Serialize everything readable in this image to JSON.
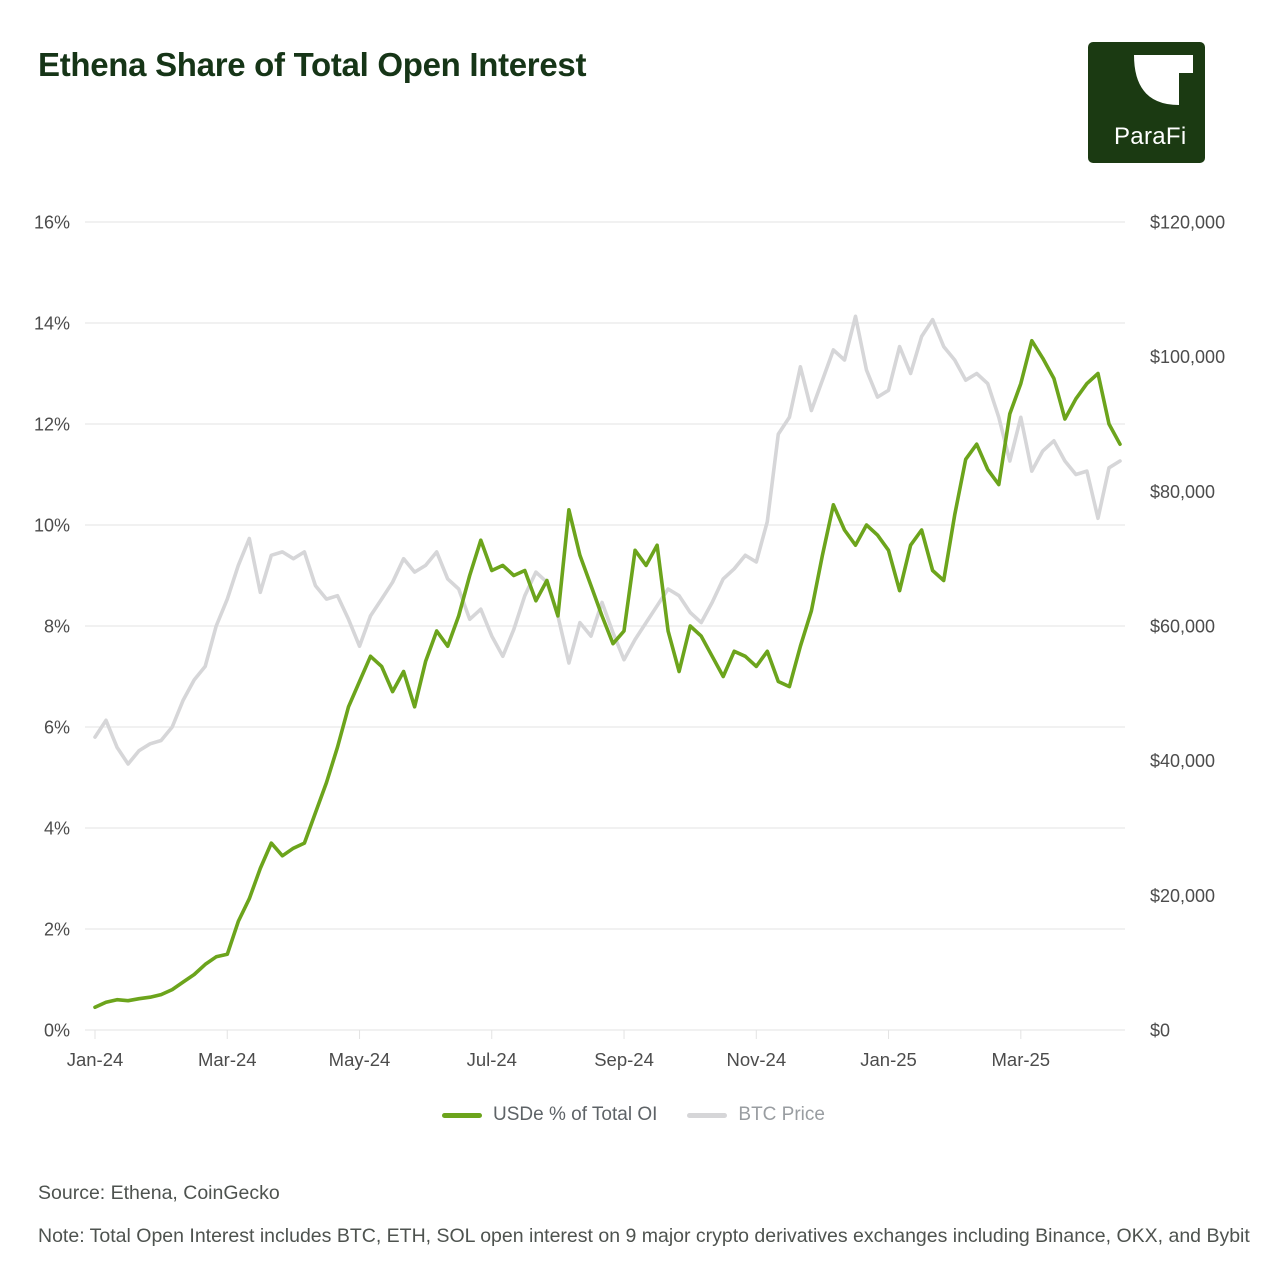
{
  "header": {
    "title": "Ethena Share of Total Open Interest",
    "logo_text": "ParaFi"
  },
  "colors": {
    "brand_green_dark": "#1B3A12",
    "line_green": "#6CA41C",
    "line_gray": "#D6D6D8",
    "grid": "#E3E3E3",
    "axis_text": "#4C4C4C",
    "legend_text_primary": "#5E6367",
    "legend_text_secondary": "#999DA1",
    "footer_text": "#4E534F"
  },
  "legend": [
    {
      "label": "USDe % of Total OI",
      "color": "#6CA41C"
    },
    {
      "label": "BTC Price",
      "color": "#D6D6D8"
    }
  ],
  "footer": {
    "source": "Source: Ethena, CoinGecko",
    "note": "Note: Total Open Interest includes BTC, ETH, SOL open interest on 9 major crypto derivatives exchanges including Binance, OKX, and Bybit"
  },
  "chart_data": {
    "type": "line",
    "title": "Ethena Share of Total Open Interest",
    "grid": "horizontal",
    "legend_position": "bottom",
    "x_tick_labels": [
      "Jan-24",
      "Mar-24",
      "May-24",
      "Jul-24",
      "Sep-24",
      "Nov-24",
      "Jan-25",
      "Mar-25"
    ],
    "x_tick_month_index": [
      0,
      2,
      4,
      6,
      8,
      10,
      12,
      14
    ],
    "points_per_month": 6,
    "left_axis": {
      "title": "USDe share of total open interest",
      "unit": "percent",
      "min": 0,
      "max": 16,
      "ticks": [
        "0%",
        "2%",
        "4%",
        "6%",
        "8%",
        "10%",
        "12%",
        "14%",
        "16%"
      ]
    },
    "right_axis": {
      "title": "BTC price",
      "unit": "USD",
      "min": 0,
      "max": 120000,
      "ticks": [
        "$0",
        "$20,000",
        "$40,000",
        "$60,000",
        "$80,000",
        "$100,000",
        "$120,000"
      ]
    },
    "series": [
      {
        "id": "usde_share",
        "name": "USDe % of Total OI",
        "axis": "left",
        "color": "#6CA41C",
        "values": [
          0.45,
          0.55,
          0.6,
          0.58,
          0.62,
          0.65,
          0.7,
          0.8,
          0.95,
          1.1,
          1.3,
          1.45,
          1.5,
          2.15,
          2.6,
          3.2,
          3.7,
          3.45,
          3.6,
          3.7,
          4.3,
          4.9,
          5.6,
          6.4,
          6.9,
          7.4,
          7.2,
          6.7,
          7.1,
          6.4,
          7.3,
          7.9,
          7.6,
          8.2,
          9.0,
          9.7,
          9.1,
          9.2,
          9.0,
          9.1,
          8.5,
          8.9,
          8.2,
          10.3,
          9.4,
          8.8,
          8.2,
          7.65,
          7.9,
          9.5,
          9.2,
          9.6,
          7.9,
          7.1,
          8.0,
          7.8,
          7.4,
          7.0,
          7.5,
          7.4,
          7.2,
          7.5,
          6.9,
          6.8,
          7.6,
          8.3,
          9.4,
          10.4,
          9.9,
          9.6,
          10.0,
          9.8,
          9.5,
          8.7,
          9.6,
          9.9,
          9.1,
          8.9,
          10.2,
          11.3,
          11.6,
          11.1,
          10.8,
          12.2,
          12.8,
          13.65,
          13.3,
          12.9,
          12.1,
          12.5,
          12.8,
          13.0,
          12.0,
          11.6
        ]
      },
      {
        "id": "btc_price",
        "name": "BTC Price",
        "axis": "right",
        "color": "#D6D6D8",
        "values": [
          43500,
          46000,
          42000,
          39500,
          41500,
          42500,
          43000,
          45000,
          49000,
          52000,
          54000,
          60000,
          64000,
          69000,
          73000,
          65000,
          70500,
          71000,
          70000,
          71000,
          66000,
          64000,
          64500,
          61000,
          57000,
          61500,
          64000,
          66500,
          70000,
          68000,
          69000,
          71000,
          67000,
          65500,
          61000,
          62500,
          58500,
          55500,
          59500,
          64500,
          68000,
          66500,
          61500,
          54500,
          60500,
          58500,
          63500,
          59000,
          55000,
          58000,
          60500,
          63000,
          65500,
          64500,
          62000,
          60500,
          63500,
          67000,
          68500,
          70500,
          69500,
          75500,
          88500,
          91000,
          98500,
          92000,
          96500,
          101000,
          99500,
          106000,
          98000,
          94000,
          95000,
          101500,
          97500,
          103000,
          105500,
          101500,
          99500,
          96500,
          97500,
          96000,
          91000,
          84500,
          91000,
          83000,
          86000,
          87500,
          84500,
          82500,
          83000,
          76000,
          83500,
          84500
        ]
      }
    ]
  }
}
